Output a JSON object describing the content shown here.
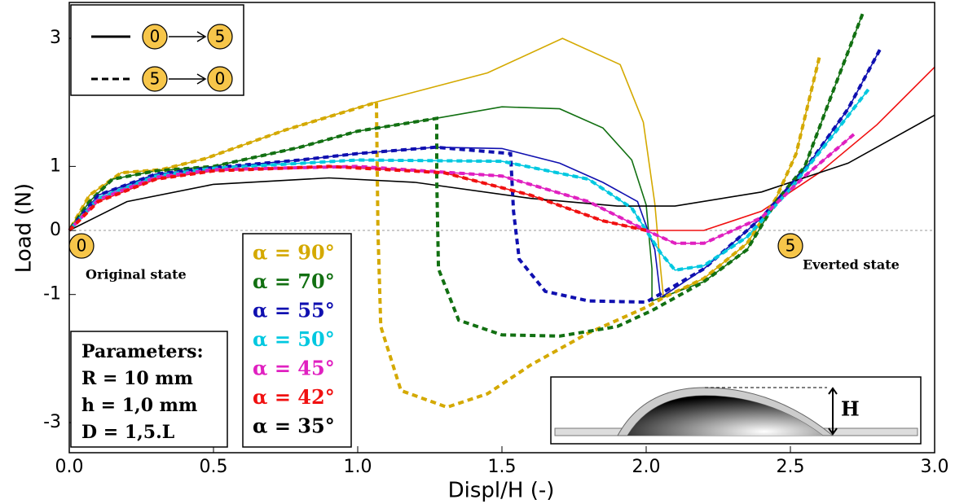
{
  "chart_data": {
    "type": "line",
    "xlabel": "Displ/H (-)",
    "ylabel": "Load (N)",
    "xlim": [
      0,
      3
    ],
    "ylim": [
      -3.47,
      3.56
    ],
    "xticks": [
      {
        "value": 0,
        "label": "0.0"
      },
      0.5,
      {
        "value": 1,
        "label": "1.0"
      },
      1.5,
      {
        "value": 2,
        "label": "2.0"
      },
      2.5,
      {
        "value": 3,
        "label": "3.0"
      }
    ],
    "yticks": [
      -3,
      -1,
      0,
      1,
      3
    ],
    "style_legend": [
      {
        "dash": false,
        "from": "0",
        "to": "5"
      },
      {
        "dash": true,
        "from": "5",
        "to": "0"
      }
    ],
    "state_markers": [
      {
        "label": "0",
        "text": "Original state"
      },
      {
        "label": "5",
        "text": "Everted state"
      }
    ],
    "parameters": {
      "title": "Parameters:",
      "lines": [
        "R = 10 mm",
        "h = 1,0 mm",
        "D = 1,5.L"
      ]
    },
    "inset_label": "H",
    "series": [
      {
        "name": "α = 90°",
        "color": "#d4a900",
        "x": [
          0,
          0.07,
          0.18,
          0.32,
          0.47,
          0.75,
          1.06,
          1.45,
          1.71,
          1.91,
          1.99,
          2.03,
          2.05,
          2.06,
          2.2,
          2.35,
          2.45,
          2.52,
          2.6
        ],
        "values": [
          0,
          0.55,
          0.9,
          0.95,
          1.12,
          1.57,
          2.0,
          2.46,
          3.0,
          2.59,
          1.69,
          0.42,
          -0.6,
          -1.05,
          -0.75,
          -0.2,
          0.5,
          1.2,
          2.7
        ],
        "return_x": [
          2.6,
          2.52,
          2.45,
          2.35,
          2.2,
          2.06,
          2.0,
          1.8,
          1.6,
          1.45,
          1.31,
          1.15,
          1.08,
          1.07,
          1.065,
          0.75,
          0.47,
          0.32,
          0.18,
          0.07,
          0
        ],
        "return_values": [
          2.7,
          1.2,
          0.5,
          -0.2,
          -0.75,
          -1.05,
          -1.2,
          -1.6,
          -2.1,
          -2.55,
          -2.76,
          -2.5,
          -1.5,
          0,
          2.0,
          1.57,
          1.12,
          0.95,
          0.9,
          0.55,
          0
        ]
      },
      {
        "name": "α = 70°",
        "color": "#127012",
        "x": [
          0,
          0.07,
          0.15,
          0.3,
          0.5,
          0.8,
          1.0,
          1.27,
          1.5,
          1.7,
          1.85,
          1.95,
          2.0,
          2.02,
          2.02,
          2.2,
          2.35,
          2.45,
          2.55,
          2.65,
          2.75
        ],
        "values": [
          0,
          0.45,
          0.8,
          0.93,
          1.0,
          1.3,
          1.55,
          1.75,
          1.93,
          1.9,
          1.6,
          1.1,
          0.4,
          -0.6,
          -1.1,
          -0.8,
          -0.3,
          0.45,
          1.0,
          2.2,
          3.38
        ],
        "return_x": [
          2.75,
          2.65,
          2.55,
          2.45,
          2.35,
          2.2,
          2.02,
          1.9,
          1.7,
          1.5,
          1.35,
          1.28,
          1.274,
          1.274,
          1.0,
          0.8,
          0.5,
          0.3,
          0.15,
          0.07,
          0
        ],
        "return_values": [
          3.38,
          2.2,
          1.0,
          0.45,
          -0.3,
          -0.8,
          -1.25,
          -1.5,
          -1.65,
          -1.63,
          -1.4,
          -0.6,
          0.8,
          1.75,
          1.55,
          1.3,
          1.0,
          0.93,
          0.8,
          0.45,
          0
        ]
      },
      {
        "name": "α = 55°",
        "color": "#1010b0",
        "x": [
          0,
          0.1,
          0.3,
          0.5,
          0.8,
          1.0,
          1.27,
          1.5,
          1.7,
          1.85,
          1.97,
          2.03,
          2.05,
          2.2,
          2.4,
          2.55,
          2.7,
          2.81
        ],
        "values": [
          0,
          0.55,
          0.88,
          0.98,
          1.1,
          1.2,
          1.3,
          1.28,
          1.05,
          0.75,
          0.45,
          -0.3,
          -1.05,
          -0.6,
          0.2,
          0.95,
          1.9,
          2.82
        ],
        "return_x": [
          2.81,
          2.7,
          2.55,
          2.4,
          2.2,
          2.0,
          1.8,
          1.65,
          1.56,
          1.54,
          1.53,
          1.27,
          1.0,
          0.8,
          0.5,
          0.3,
          0.1,
          0
        ],
        "return_values": [
          2.82,
          1.9,
          0.95,
          0.2,
          -0.6,
          -1.12,
          -1.1,
          -0.95,
          -0.45,
          0.3,
          1.2,
          1.3,
          1.2,
          1.1,
          0.98,
          0.88,
          0.55,
          0
        ]
      },
      {
        "name": "α = 50°",
        "color": "#00c8e0",
        "x": [
          0,
          0.1,
          0.3,
          0.5,
          1.0,
          1.5,
          1.8,
          1.95,
          2.05,
          2.1,
          2.2,
          2.35,
          2.5,
          2.65,
          2.77
        ],
        "values": [
          0,
          0.5,
          0.85,
          0.97,
          1.1,
          1.08,
          0.8,
          0.35,
          -0.35,
          -0.62,
          -0.55,
          -0.1,
          0.65,
          1.5,
          2.2
        ],
        "return_x": [
          2.77,
          2.65,
          2.5,
          2.35,
          2.2,
          2.1,
          2.05,
          1.95,
          1.8,
          1.5,
          1.0,
          0.5,
          0.3,
          0.1,
          0
        ],
        "return_values": [
          2.2,
          1.5,
          0.65,
          -0.1,
          -0.55,
          -0.62,
          -0.35,
          0.35,
          0.8,
          1.08,
          1.1,
          0.97,
          0.85,
          0.5,
          0
        ]
      },
      {
        "name": "α = 45°",
        "color": "#e020c0",
        "x": [
          0,
          0.1,
          0.3,
          0.5,
          1.0,
          1.5,
          1.8,
          2.0,
          2.1,
          2.2,
          2.4,
          2.55,
          2.72
        ],
        "values": [
          0,
          0.48,
          0.83,
          0.95,
          1.0,
          0.85,
          0.45,
          0.0,
          -0.2,
          -0.2,
          0.2,
          0.85,
          1.5
        ],
        "return_x": [
          2.72,
          2.55,
          2.4,
          2.2,
          2.1,
          2.0,
          1.8,
          1.5,
          1.0,
          0.5,
          0.3,
          0.1,
          0
        ],
        "return_values": [
          1.5,
          0.85,
          0.2,
          -0.2,
          -0.2,
          0.0,
          0.45,
          0.85,
          1.0,
          0.95,
          0.83,
          0.48,
          0
        ]
      },
      {
        "name": "α = 42°",
        "color": "#f01010",
        "x": [
          0,
          0.1,
          0.3,
          0.5,
          0.9,
          1.3,
          1.6,
          1.85,
          2.0,
          2.2,
          2.4,
          2.6,
          2.8,
          3.0
        ],
        "values": [
          0,
          0.45,
          0.8,
          0.93,
          1.0,
          0.9,
          0.55,
          0.15,
          0.0,
          0.0,
          0.3,
          0.9,
          1.65,
          2.55
        ],
        "return_x": [
          2.0,
          1.85,
          1.6,
          1.3,
          0.9,
          0.5,
          0.3,
          0.1,
          0
        ],
        "return_values": [
          0.0,
          0.15,
          0.55,
          0.9,
          1.0,
          0.93,
          0.8,
          0.45,
          0
        ]
      },
      {
        "name": "α = 35°",
        "color": "#000000",
        "x": [
          0,
          0.2,
          0.5,
          0.9,
          1.2,
          1.6,
          1.9,
          2.1,
          2.4,
          2.7,
          3.0
        ],
        "values": [
          0,
          0.45,
          0.72,
          0.82,
          0.75,
          0.5,
          0.38,
          0.38,
          0.6,
          1.05,
          1.8
        ]
      }
    ]
  }
}
